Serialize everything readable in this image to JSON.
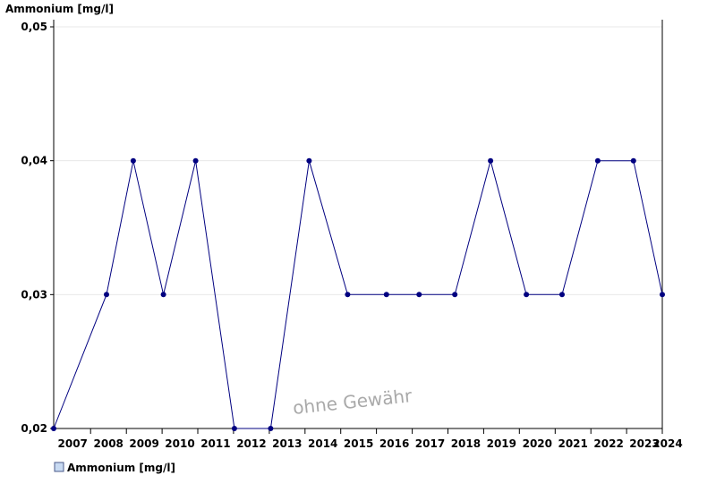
{
  "chart_data": {
    "type": "line",
    "title": "",
    "ylabel": "Ammonium [mg/l]",
    "xlabel": "",
    "ylim": [
      0.02,
      0.05
    ],
    "xlim": [
      "2006-12-20",
      "2024-01-01"
    ],
    "yticks": [
      {
        "value": 0.02,
        "label": "0,02"
      },
      {
        "value": 0.03,
        "label": "0,03"
      },
      {
        "value": 0.04,
        "label": "0,04"
      },
      {
        "value": 0.05,
        "label": "0,05"
      }
    ],
    "xtick_labels": [
      "2007",
      "2008",
      "2009",
      "2010",
      "2011",
      "2012",
      "2013",
      "2014",
      "2015",
      "2016",
      "2017",
      "2018",
      "2019",
      "2020",
      "2021",
      "2022",
      "2023",
      "2024"
    ],
    "grid": {
      "horizontal": true,
      "vertical": false
    },
    "legend": {
      "position": "bottom-left",
      "entries": [
        "Ammonium [mg/l]"
      ]
    },
    "series": [
      {
        "name": "Ammonium [mg/l]",
        "color": "#000080",
        "marker_color": "#000080",
        "points": [
          {
            "x": "2006-12-20",
            "y": 0.02
          },
          {
            "x": "2008-06-12",
            "y": 0.03
          },
          {
            "x": "2009-03-12",
            "y": 0.04
          },
          {
            "x": "2010-01-15",
            "y": 0.03
          },
          {
            "x": "2010-12-10",
            "y": 0.04
          },
          {
            "x": "2012-01-10",
            "y": 0.02
          },
          {
            "x": "2013-01-15",
            "y": 0.02
          },
          {
            "x": "2014-02-12",
            "y": 0.04
          },
          {
            "x": "2015-03-12",
            "y": 0.03
          },
          {
            "x": "2016-04-12",
            "y": 0.03
          },
          {
            "x": "2017-03-12",
            "y": 0.03
          },
          {
            "x": "2018-03-12",
            "y": 0.03
          },
          {
            "x": "2019-03-12",
            "y": 0.04
          },
          {
            "x": "2020-03-12",
            "y": 0.03
          },
          {
            "x": "2021-03-12",
            "y": 0.03
          },
          {
            "x": "2022-03-12",
            "y": 0.04
          },
          {
            "x": "2023-03-12",
            "y": 0.04
          },
          {
            "x": "2024-01-01",
            "y": 0.03
          }
        ]
      }
    ],
    "colors": {
      "axis": "#000000",
      "grid": "#e8e8e8",
      "line": "#000080",
      "marker": "#000080",
      "legend_swatch_fill": "#c8daf2",
      "legend_swatch_border": "#4a5a8a",
      "watermark": "#9a9a9a"
    },
    "watermark": "ohne Gewähr"
  }
}
